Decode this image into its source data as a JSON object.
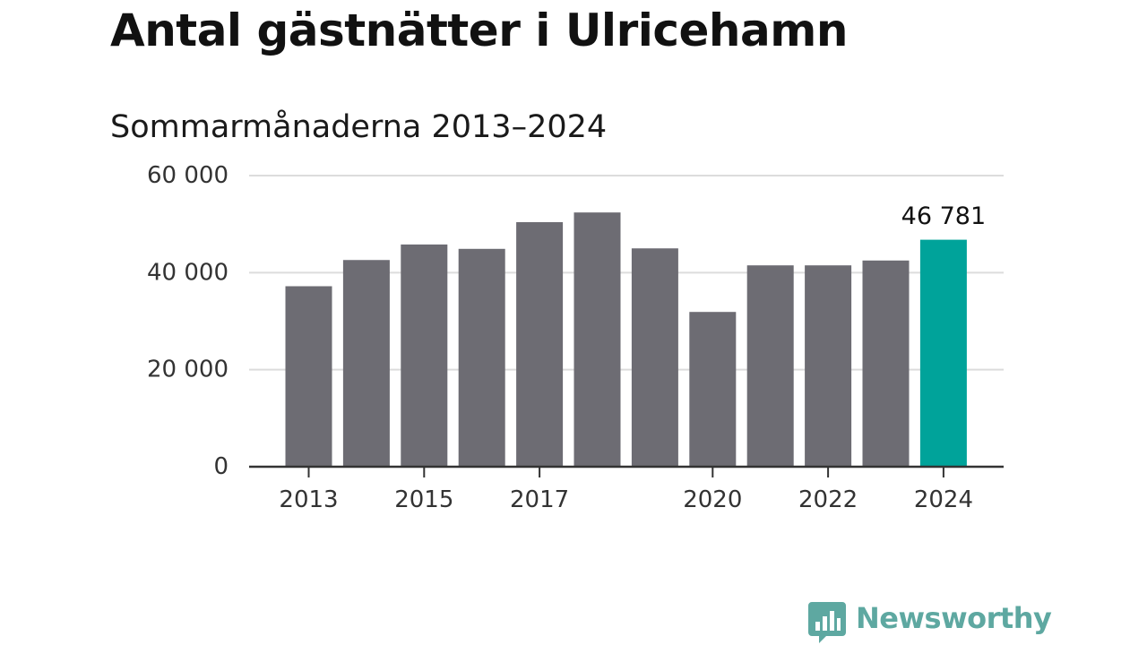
{
  "title": "Antal gästnätter i Ulricehamn",
  "subtitle": "Sommarmånaderna 2013–2024",
  "brand": {
    "name": "Newsworthy",
    "icon": "newsworthy-chat-bars-icon",
    "color": "#5ea8a1"
  },
  "chart_data": {
    "type": "bar",
    "categories": [
      "2013",
      "2014",
      "2015",
      "2016",
      "2017",
      "2018",
      "2019",
      "2020",
      "2021",
      "2022",
      "2023",
      "2024"
    ],
    "values": [
      37200,
      42600,
      45800,
      44900,
      50400,
      52400,
      45000,
      31900,
      41500,
      41500,
      42500,
      46781
    ],
    "highlight_index": 11,
    "data_labels": [
      {
        "index": 11,
        "text": "46 781"
      }
    ],
    "x_tick_labels": [
      "2013",
      "2015",
      "2017",
      "2020",
      "2022",
      "2024"
    ],
    "y_ticks": [
      0,
      20000,
      40000,
      60000
    ],
    "y_tick_labels": [
      "0",
      "20 000",
      "40 000",
      "60 000"
    ],
    "ylim": [
      0,
      60000
    ],
    "xlabel": "",
    "ylabel": "",
    "grid": true,
    "colors": {
      "bar": "#6d6c73",
      "highlight": "#00a39a",
      "grid": "#dcdcdc",
      "axis": "#333333",
      "text": "#333333"
    }
  }
}
